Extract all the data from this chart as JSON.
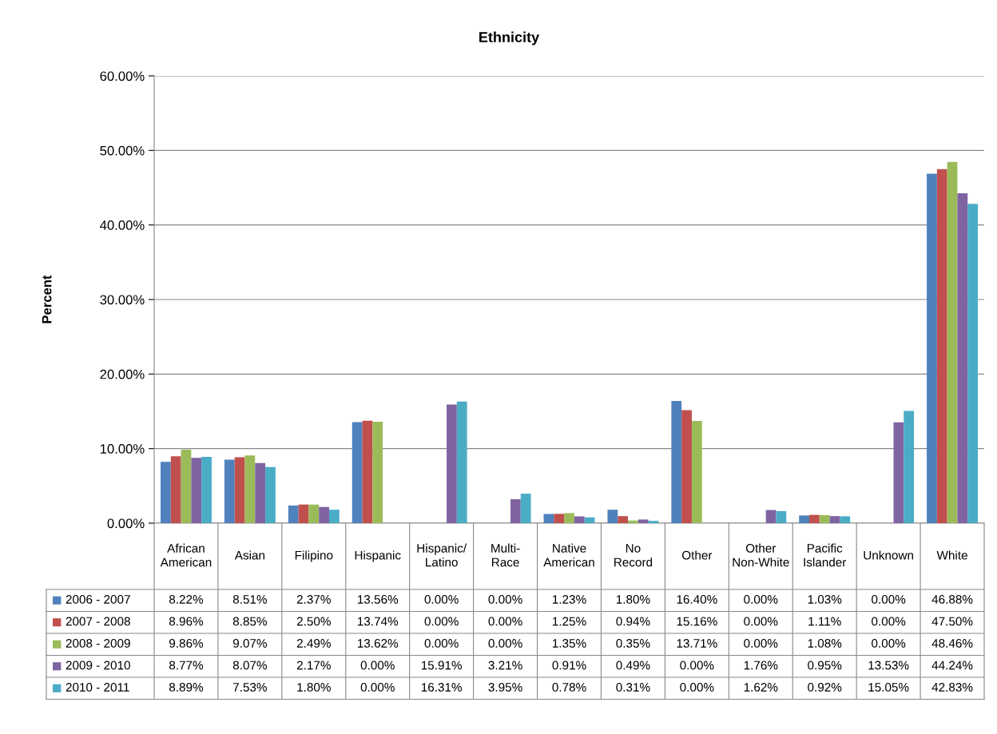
{
  "chart_data": {
    "type": "bar",
    "title": "Ethnicity",
    "ylabel": "Percent",
    "categories": [
      "African American",
      "Asian",
      "Filipino",
      "Hispanic",
      "Hispanic/Latino",
      "Multi-Race",
      "Native American",
      "No Record",
      "Other",
      "Other Non-White",
      "Pacific Islander",
      "Unknown",
      "White"
    ],
    "series": [
      {
        "name": "2006 - 2007",
        "color": "#4f81bd",
        "values": [
          8.22,
          8.51,
          2.37,
          13.56,
          0.0,
          0.0,
          1.23,
          1.8,
          16.4,
          0.0,
          1.03,
          0.0,
          46.88
        ],
        "value_labels": [
          "8.22%",
          "8.51%",
          "2.37%",
          "13.56%",
          "0.00%",
          "0.00%",
          "1.23%",
          "1.80%",
          "16.40%",
          "0.00%",
          "1.03%",
          "0.00%",
          "46.88%"
        ]
      },
      {
        "name": "2007 - 2008",
        "color": "#c0504d",
        "values": [
          8.96,
          8.85,
          2.5,
          13.74,
          0.0,
          0.0,
          1.25,
          0.94,
          15.16,
          0.0,
          1.11,
          0.0,
          47.5
        ],
        "value_labels": [
          "8.96%",
          "8.85%",
          "2.50%",
          "13.74%",
          "0.00%",
          "0.00%",
          "1.25%",
          "0.94%",
          "15.16%",
          "0.00%",
          "1.11%",
          "0.00%",
          "47.50%"
        ]
      },
      {
        "name": "2008 - 2009",
        "color": "#9bbb59",
        "values": [
          9.86,
          9.07,
          2.49,
          13.62,
          0.0,
          0.0,
          1.35,
          0.35,
          13.71,
          0.0,
          1.08,
          0.0,
          48.46
        ],
        "value_labels": [
          "9.86%",
          "9.07%",
          "2.49%",
          "13.62%",
          "0.00%",
          "0.00%",
          "1.35%",
          "0.35%",
          "13.71%",
          "0.00%",
          "1.08%",
          "0.00%",
          "48.46%"
        ]
      },
      {
        "name": "2009 - 2010",
        "color": "#8064a2",
        "values": [
          8.77,
          8.07,
          2.17,
          0.0,
          15.91,
          3.21,
          0.91,
          0.49,
          0.0,
          1.76,
          0.95,
          13.53,
          44.24
        ],
        "value_labels": [
          "8.77%",
          "8.07%",
          "2.17%",
          "0.00%",
          "15.91%",
          "3.21%",
          "0.91%",
          "0.49%",
          "0.00%",
          "1.76%",
          "0.95%",
          "13.53%",
          "44.24%"
        ]
      },
      {
        "name": "2010 - 2011",
        "color": "#4bacc6",
        "values": [
          8.89,
          7.53,
          1.8,
          0.0,
          16.31,
          3.95,
          0.78,
          0.31,
          0.0,
          1.62,
          0.92,
          15.05,
          42.83
        ],
        "value_labels": [
          "8.89%",
          "7.53%",
          "1.80%",
          "0.00%",
          "16.31%",
          "3.95%",
          "0.78%",
          "0.31%",
          "0.00%",
          "1.62%",
          "0.92%",
          "15.05%",
          "42.83%"
        ]
      }
    ],
    "ylim": [
      0,
      60
    ],
    "yticks": [
      {
        "value": 0,
        "label": "0.00%"
      },
      {
        "value": 10,
        "label": "10.00%"
      },
      {
        "value": 20,
        "label": "20.00%"
      },
      {
        "value": 30,
        "label": "30.00%"
      },
      {
        "value": 40,
        "label": "40.00%"
      },
      {
        "value": 50,
        "label": "50.00%"
      },
      {
        "value": 60,
        "label": "60.00%"
      }
    ],
    "grid": "y",
    "legend": "bottom left"
  }
}
